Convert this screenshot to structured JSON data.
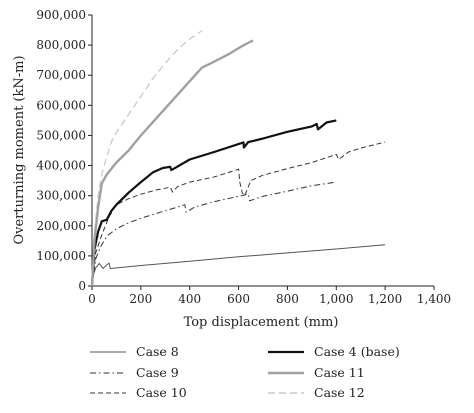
{
  "chart_data": {
    "type": "line",
    "xlabel": "Top displacement (mm)",
    "ylabel": "Overturning moment (kN-m)",
    "xlim": [
      0,
      1400
    ],
    "ylim": [
      0,
      900000
    ],
    "xticks": [
      0,
      200,
      400,
      600,
      800,
      1000,
      1200,
      1400
    ],
    "yticks": [
      0,
      100000,
      200000,
      300000,
      400000,
      500000,
      600000,
      700000,
      800000,
      900000
    ],
    "xtick_labels": [
      "0",
      "200",
      "400",
      "600",
      "800",
      "1,000",
      "1,200",
      "1,400"
    ],
    "ytick_labels": [
      "0",
      "100,000",
      "200,000",
      "300,000",
      "400,000",
      "500,000",
      "600,000",
      "700,000",
      "800,000",
      "900,000"
    ],
    "grid": false,
    "legend_position": "bottom",
    "series": [
      {
        "name": "Case 8",
        "color": "#555555",
        "width": 1,
        "dash": "",
        "x": [
          0,
          5,
          15,
          30,
          45,
          60,
          70,
          75,
          200,
          400,
          600,
          800,
          1000,
          1200
        ],
        "y": [
          0,
          35000,
          60000,
          75000,
          58000,
          70000,
          76000,
          58000,
          68000,
          82000,
          97000,
          110000,
          123000,
          137000
        ]
      },
      {
        "name": "Case 4 (base)",
        "color": "#111111",
        "width": 2.2,
        "dash": "",
        "x": [
          0,
          10,
          25,
          40,
          60,
          80,
          100,
          150,
          200,
          250,
          290,
          320,
          325,
          400,
          500,
          620,
          622,
          640,
          700,
          800,
          900,
          920,
          925,
          960,
          1000
        ],
        "y": [
          0,
          120000,
          180000,
          215000,
          220000,
          250000,
          270000,
          310000,
          345000,
          378000,
          392000,
          396000,
          385000,
          420000,
          445000,
          477000,
          460000,
          478000,
          490000,
          512000,
          530000,
          538000,
          520000,
          543000,
          550000
        ]
      },
      {
        "name": "Case 9",
        "color": "#333333",
        "width": 1,
        "dash": "6,3,1.5,3",
        "x": [
          0,
          15,
          35,
          60,
          100,
          150,
          200,
          280,
          350,
          380,
          385,
          420,
          500,
          600,
          640,
          645,
          700,
          800,
          900,
          1000
        ],
        "y": [
          0,
          90000,
          130000,
          165000,
          190000,
          210000,
          225000,
          245000,
          262000,
          270000,
          245000,
          262000,
          280000,
          298000,
          305000,
          283000,
          298000,
          315000,
          333000,
          345000
        ]
      },
      {
        "name": "Case 10",
        "color": "#333333",
        "width": 1,
        "dash": "5,3",
        "x": [
          0,
          15,
          40,
          70,
          100,
          150,
          200,
          260,
          320,
          330,
          350,
          400,
          500,
          600,
          605,
          615,
          625,
          650,
          700,
          800,
          900,
          1000,
          1010,
          1050,
          1100,
          1200
        ],
        "y": [
          0,
          110000,
          170000,
          230000,
          270000,
          290000,
          305000,
          318000,
          328000,
          312000,
          330000,
          345000,
          362000,
          388000,
          345000,
          310000,
          300000,
          350000,
          368000,
          390000,
          410000,
          437000,
          420000,
          445000,
          458000,
          478000
        ]
      },
      {
        "name": "Case 11",
        "color": "#a0a0a0",
        "width": 2.4,
        "dash": "",
        "x": [
          0,
          10,
          25,
          40,
          60,
          100,
          150,
          200,
          300,
          400,
          450,
          500,
          560,
          600,
          650,
          660
        ],
        "y": [
          0,
          150000,
          260000,
          340000,
          370000,
          410000,
          450000,
          500000,
          590000,
          680000,
          725000,
          745000,
          770000,
          790000,
          812000,
          815000
        ]
      },
      {
        "name": "Case 12",
        "color": "#cccccc",
        "width": 1.4,
        "dash": "7,4",
        "x": [
          0,
          10,
          25,
          40,
          60,
          80,
          100,
          150,
          200,
          250,
          300,
          350,
          400,
          450
        ],
        "y": [
          0,
          170000,
          300000,
          370000,
          430000,
          480000,
          510000,
          570000,
          630000,
          690000,
          740000,
          785000,
          820000,
          848000
        ]
      }
    ]
  }
}
